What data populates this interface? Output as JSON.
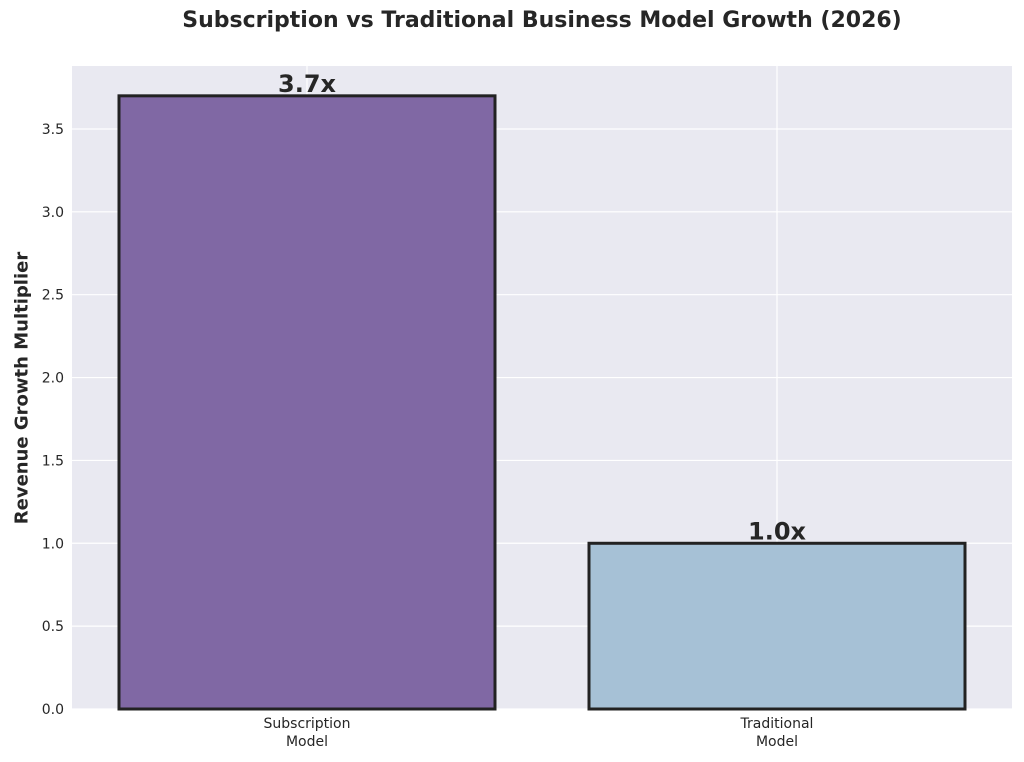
{
  "chart_data": {
    "type": "bar",
    "title": "Subscription vs Traditional Business Model Growth (2026)",
    "xlabel": "",
    "ylabel": "Revenue Growth Multiplier",
    "categories": [
      [
        "Subscription",
        "Model"
      ],
      [
        "Traditional",
        "Model"
      ]
    ],
    "values": [
      3.7,
      1.0
    ],
    "data_labels": [
      "3.7x",
      "1.0x"
    ],
    "colors": [
      "#8068a4",
      "#a6c1d6"
    ],
    "edge_color": "#222222",
    "plot_background": "#e9e9f1",
    "grid_color": "#ffffff",
    "ylim": [
      0,
      3.88
    ],
    "yticks": [
      0.0,
      0.5,
      1.0,
      1.5,
      2.0,
      2.5,
      3.0,
      3.5
    ],
    "ytick_labels": [
      "0.0",
      "0.5",
      "1.0",
      "1.5",
      "2.0",
      "2.5",
      "3.0",
      "3.5"
    ],
    "grid": true,
    "legend": false
  }
}
